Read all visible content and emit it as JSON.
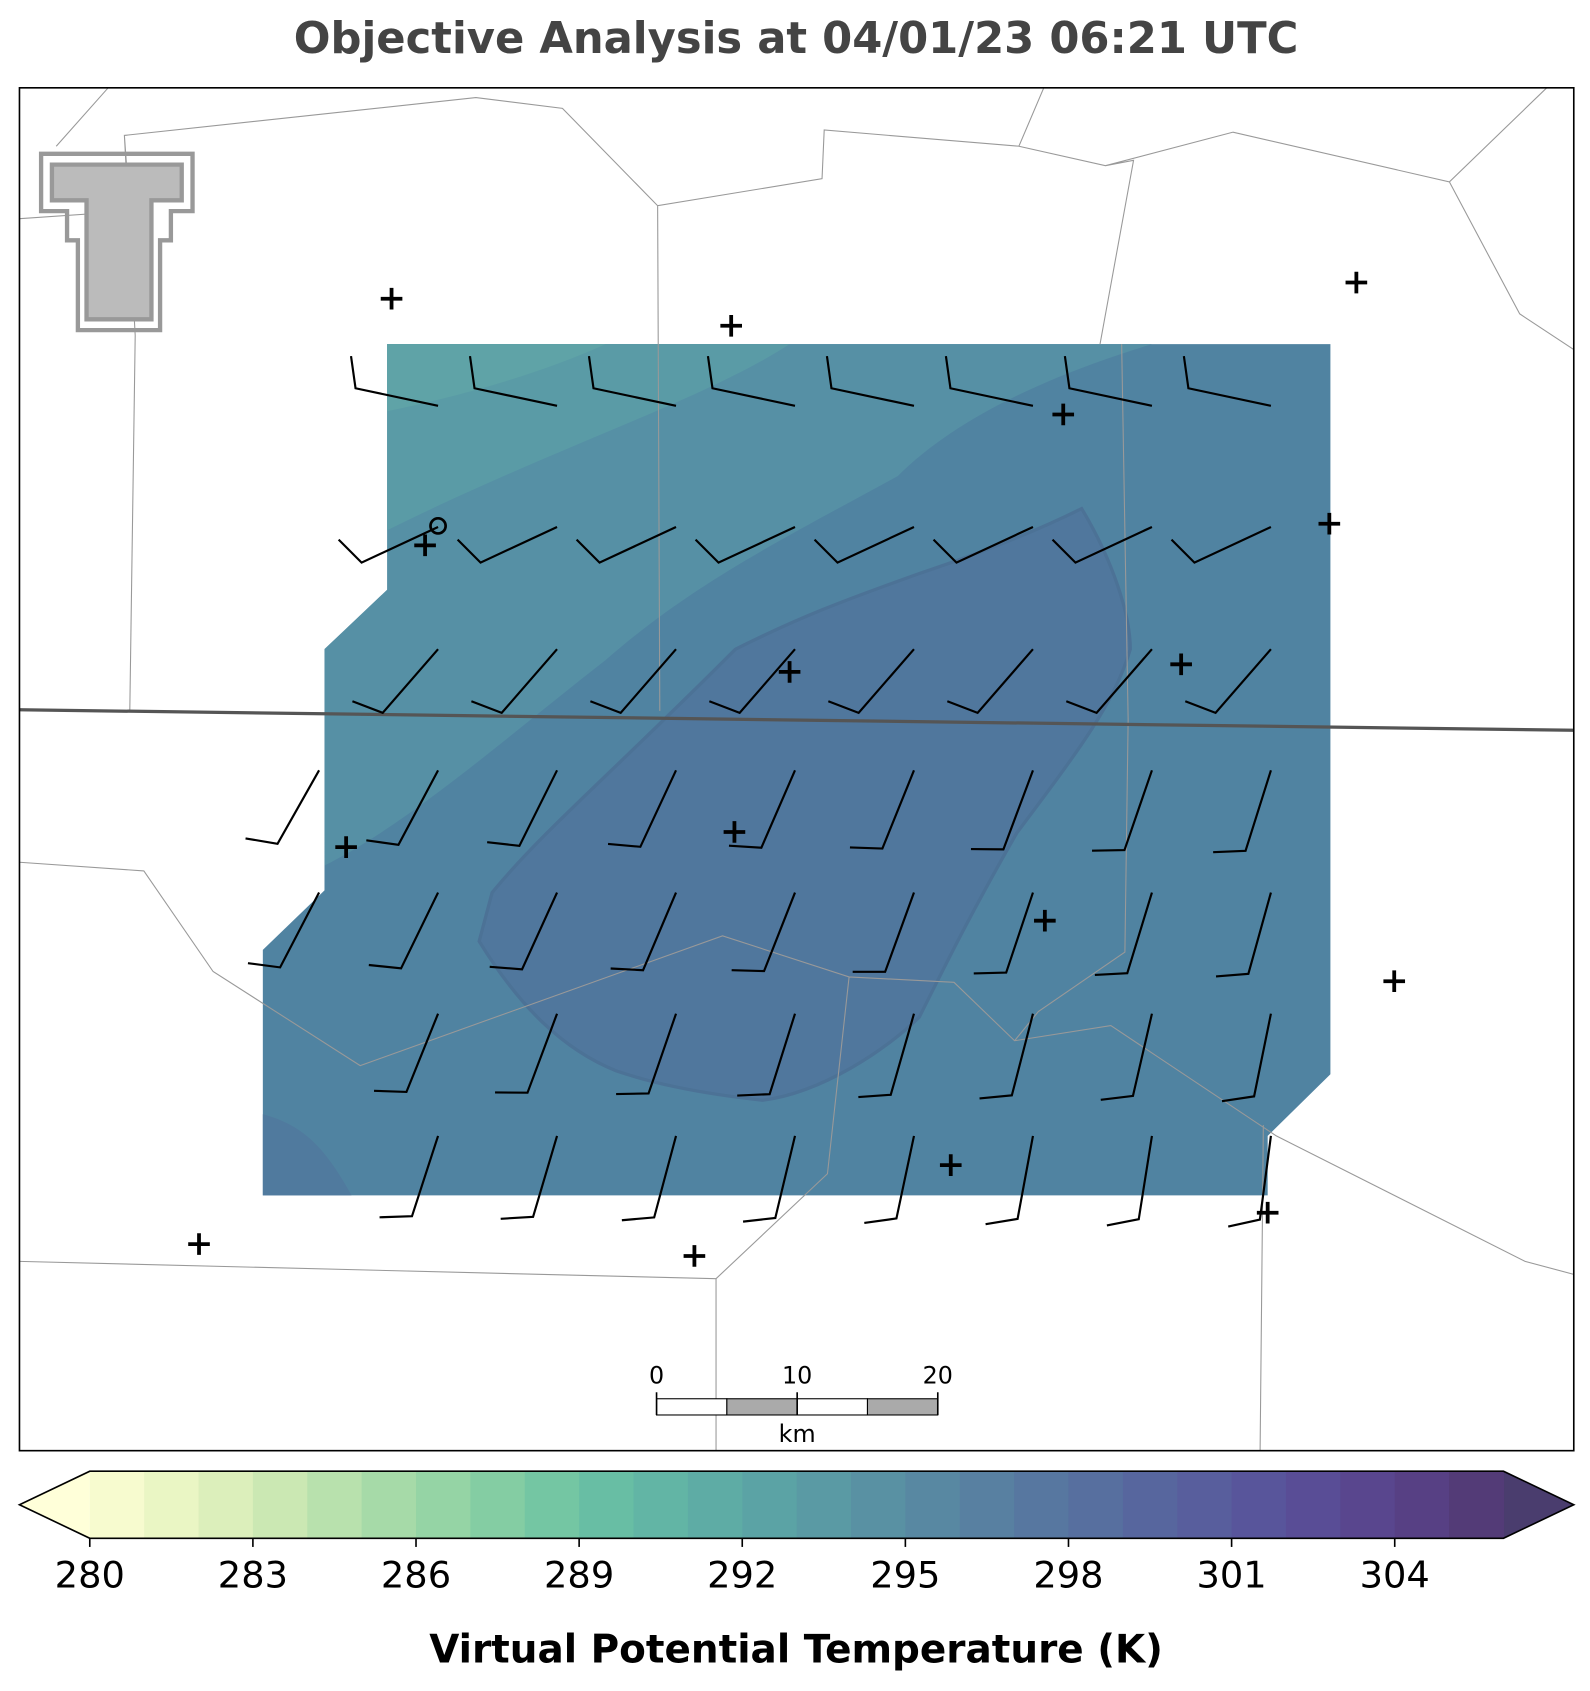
{
  "chart_data": {
    "type": "map",
    "title": "Objective Analysis at 04/01/23 06:21 UTC",
    "colorbar": {
      "label": "Virtual Potential Temperature (K)",
      "levels": [
        280,
        281,
        282,
        283,
        284,
        285,
        286,
        287,
        288,
        289,
        290,
        291,
        292,
        293,
        294,
        295,
        296,
        297,
        298,
        299,
        300,
        301,
        302,
        303,
        304,
        305,
        306
      ],
      "colors": [
        "#f7fbcf",
        "#eaf6c4",
        "#dcefbb",
        "#cbe8b3",
        "#b8e1ad",
        "#a6daa8",
        "#95d4a5",
        "#84cda3",
        "#74c6a3",
        "#68bea4",
        "#62b5a5",
        "#5eaca5",
        "#5ba3a5",
        "#5a9aa4",
        "#5991a3",
        "#5888a2",
        "#5880a1",
        "#5777a0",
        "#576f9f",
        "#57669e",
        "#585e9d",
        "#58559b",
        "#594d96",
        "#59468e",
        "#574084",
        "#533b77"
      ],
      "extend_colors": [
        "#ffffd9",
        "#4a3d6e"
      ],
      "ticks": [
        280,
        283,
        286,
        289,
        292,
        295,
        298,
        301,
        304
      ]
    },
    "scale_bar": {
      "lim": [
        0,
        20
      ],
      "ticks": [
        0,
        10,
        20
      ],
      "unit": "km"
    }
  }
}
